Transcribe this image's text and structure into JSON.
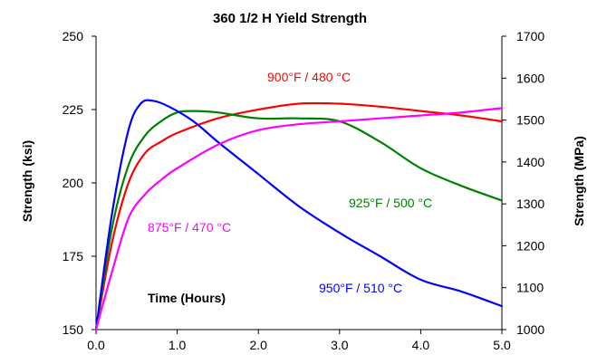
{
  "chart_data": {
    "type": "line",
    "title": "360 1/2 H Yield Strength",
    "xlabel": "Time (Hours)",
    "ylabel": "Strength (ksi)",
    "y2label": "Strength (MPa)",
    "xlim": [
      0,
      5
    ],
    "ylim": [
      150,
      250
    ],
    "y2lim": [
      1000,
      1700
    ],
    "xticks": [
      "0.0",
      "1.0",
      "2.0",
      "3.0",
      "4.0",
      "5.0"
    ],
    "yticks": [
      "150",
      "175",
      "200",
      "225",
      "250"
    ],
    "y2ticks": [
      "1000",
      "1100",
      "1200",
      "1300",
      "1400",
      "1500",
      "1600",
      "1700"
    ],
    "grid": false,
    "series": [
      {
        "name": "900°F / 480 °C",
        "color": "#ff0000",
        "x": [
          0,
          0.2,
          0.4,
          0.6,
          0.8,
          1.0,
          1.5,
          2.0,
          2.5,
          3.0,
          3.5,
          4.0,
          4.5,
          5.0
        ],
        "y": [
          150,
          180,
          200,
          210,
          214,
          217,
          222,
          225,
          227,
          227,
          226,
          224.5,
          223,
          221
        ]
      },
      {
        "name": "925°F / 500 °C",
        "color": "#008000",
        "x": [
          0,
          0.2,
          0.4,
          0.6,
          0.8,
          1.0,
          1.2,
          1.5,
          2.0,
          2.5,
          3.0,
          3.5,
          4.0,
          4.5,
          5.0
        ],
        "y": [
          150,
          185,
          206,
          216,
          221,
          224,
          224.5,
          224,
          222,
          222,
          221,
          214,
          205,
          199,
          194
        ]
      },
      {
        "name": "950°F / 510 °C",
        "color": "#0000ff",
        "x": [
          0,
          0.2,
          0.4,
          0.55,
          0.7,
          0.9,
          1.2,
          1.5,
          2.0,
          2.5,
          3.0,
          3.5,
          4.0,
          4.5,
          5.0
        ],
        "y": [
          150,
          190,
          218,
          227,
          228,
          226,
          221,
          214,
          203,
          192,
          183,
          175,
          167,
          163,
          158
        ]
      },
      {
        "name": "875°F / 470 °C",
        "color": "#ff00ff",
        "x": [
          0,
          0.2,
          0.4,
          0.6,
          0.8,
          1.0,
          1.5,
          2.0,
          2.5,
          3.0,
          3.5,
          4.0,
          4.5,
          5.0
        ],
        "y": [
          150,
          170,
          188,
          196,
          201,
          205,
          213,
          218,
          220,
          221,
          222,
          223,
          224,
          225.5
        ]
      }
    ]
  }
}
